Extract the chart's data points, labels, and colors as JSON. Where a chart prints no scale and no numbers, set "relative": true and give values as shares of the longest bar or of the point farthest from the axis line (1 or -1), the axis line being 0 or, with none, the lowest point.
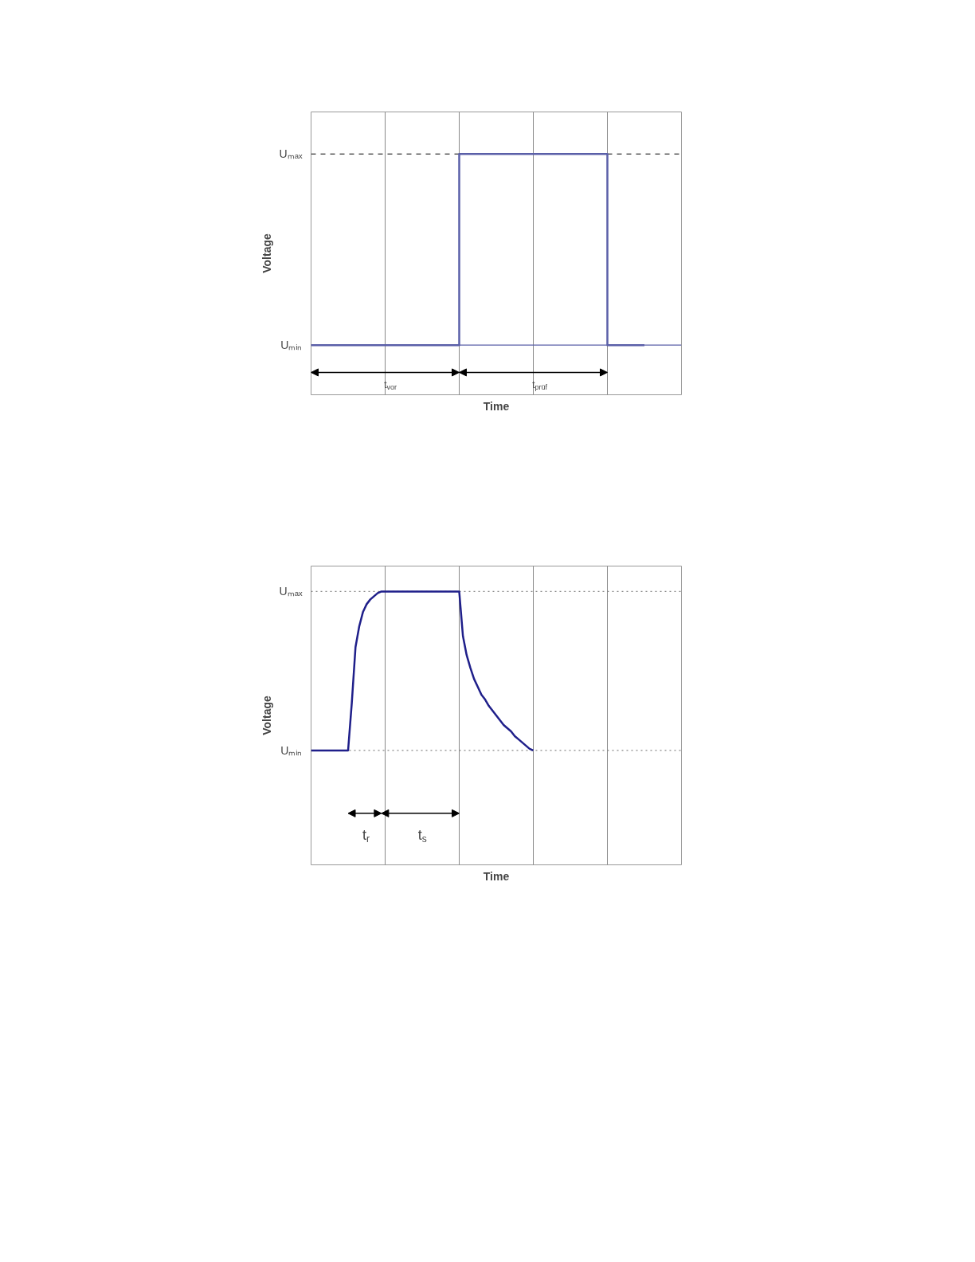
{
  "chart_data": [
    {
      "type": "step",
      "xlabel": "Time",
      "ylabel": "Voltage",
      "categories": [
        null,
        null,
        null,
        null,
        null,
        null,
        null,
        null,
        null,
        null,
        null
      ],
      "series": [
        {
          "color": "#5a5fa8",
          "values": [
            0,
            0,
            0,
            0,
            1,
            1,
            1,
            1,
            0,
            0,
            null
          ]
        }
      ],
      "relative": true,
      "grid": "x",
      "tick_labels": "y",
      "ref_lines": [
        {
          "axis": "y",
          "value": 1,
          "label": "Uₘₐₓ",
          "color": "#000000",
          "line_style": "dashed"
        },
        {
          "axis": "y",
          "value": 0,
          "label": "Uₘᵢₙ",
          "color": "#5a5fa8",
          "line_style": "solid"
        }
      ],
      "annotations": [
        "t$_{vor}$",
        "t$_{prüf}$"
      ]
    },
    {
      "type": "line",
      "xlabel": "Time",
      "ylabel": "Voltage",
      "categories": [
        null,
        null,
        null,
        null,
        null,
        null,
        null,
        null,
        null,
        null,
        null,
        null,
        null,
        null,
        null,
        null,
        null,
        null,
        null,
        null,
        null,
        null,
        null,
        null,
        null,
        null,
        null,
        null,
        null,
        null,
        null,
        null,
        null,
        null,
        null,
        null,
        null,
        null,
        null,
        null,
        null,
        null,
        null,
        null,
        null,
        null,
        null,
        null,
        null,
        null,
        null,
        null,
        null,
        null,
        null,
        null,
        null,
        null,
        null,
        null,
        null,
        null,
        null,
        null,
        null,
        null,
        null,
        null,
        null,
        null,
        null,
        null,
        null,
        null,
        null,
        null,
        null,
        null,
        null,
        null,
        null,
        null,
        null,
        null,
        null,
        null,
        null,
        null,
        null,
        null,
        null,
        null,
        null,
        null,
        null,
        null,
        null,
        null,
        null,
        null,
        null
      ],
      "series": [
        {
          "color": "#1f1f8a",
          "values": [
            0,
            0,
            0,
            0,
            0,
            0,
            0,
            0,
            0,
            0,
            0,
            0.3,
            0.65,
            0.78,
            0.87,
            0.92,
            0.95,
            0.97,
            0.99,
            1,
            1,
            1,
            1,
            1,
            1,
            1,
            1,
            1,
            1,
            1,
            1,
            1,
            1,
            1,
            1,
            1,
            1,
            1,
            1,
            1,
            1,
            0.72,
            0.6,
            0.52,
            0.45,
            0.4,
            0.35,
            0.32,
            0.28,
            0.25,
            0.22,
            0.19,
            0.16,
            0.14,
            0.12,
            0.09,
            0.07,
            0.05,
            0.03,
            0.01,
            0,
            null,
            null,
            null,
            null,
            null,
            null,
            null,
            null,
            null,
            null,
            null,
            null,
            null,
            null,
            null,
            null,
            null,
            null,
            null,
            null,
            null,
            null,
            null,
            null,
            null,
            null,
            null,
            null,
            null,
            null,
            null,
            null,
            null,
            null,
            null,
            null,
            null,
            null,
            null,
            null
          ]
        }
      ],
      "relative": true,
      "grid": "x",
      "tick_labels": "y",
      "ref_lines": [
        {
          "axis": "y",
          "value": 1,
          "label": "Uₘₐₓ",
          "color": "#888888",
          "line_style": "dotted"
        },
        {
          "axis": "y",
          "value": 0,
          "label": "Uₘᵢₙ",
          "color": "#888888",
          "line_style": "dotted"
        }
      ],
      "annotations": [
        "t$_{r}$",
        "t$_{s}$"
      ]
    }
  ]
}
